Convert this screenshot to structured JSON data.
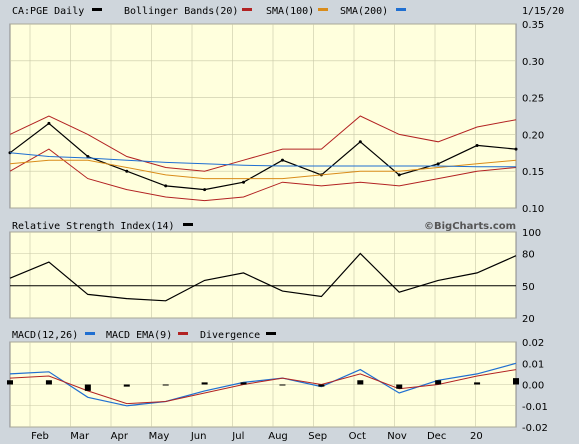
{
  "header": {
    "symbol_label": "CA:PGE Daily",
    "bb_label": "Bollinger Bands(20)",
    "sma100_label": "SMA(100)",
    "sma200_label": "SMA(200)",
    "date": "1/15/20"
  },
  "rsi_panel": {
    "title": "Relative Strength Index(14)"
  },
  "macd_panel": {
    "macd_label": "MACD(12,26)",
    "ema_label": "MACD EMA(9)",
    "div_label": "Divergence"
  },
  "watermark": "©BigCharts.com",
  "colors": {
    "price": "#000000",
    "bollinger": "#b22222",
    "sma100": "#b22222",
    "sma200": "#d98c1a",
    "sma200_alt": "#1f6fd1",
    "macd": "#1f6fd1",
    "macd_ema": "#b22222",
    "plot_bg": "#ffffdd",
    "panel_bg": "#cfd6dc"
  },
  "chart_data": [
    {
      "type": "line",
      "title": "CA:PGE Daily",
      "x_ticks": [
        "Feb",
        "Mar",
        "Apr",
        "May",
        "Jun",
        "Jul",
        "Aug",
        "Sep",
        "Oct",
        "Nov",
        "Dec",
        "20"
      ],
      "y_ticks": [
        "0.35",
        "0.30",
        "0.25",
        "0.20",
        "0.15",
        "0.10"
      ],
      "ylim": [
        0.1,
        0.35
      ],
      "x_index": [
        0,
        4,
        8,
        12,
        16,
        20,
        24,
        28,
        32,
        36,
        40,
        44,
        48,
        52
      ],
      "series": [
        {
          "name": "CA:PGE Daily",
          "values": [
            0.175,
            0.215,
            0.17,
            0.15,
            0.13,
            0.125,
            0.135,
            0.165,
            0.145,
            0.19,
            0.145,
            0.16,
            0.185,
            0.18
          ]
        },
        {
          "name": "Bollinger Bands(20) upper",
          "values": [
            0.2,
            0.225,
            0.2,
            0.17,
            0.155,
            0.15,
            0.165,
            0.18,
            0.18,
            0.225,
            0.2,
            0.19,
            0.21,
            0.22
          ]
        },
        {
          "name": "Bollinger Bands(20) lower",
          "values": [
            0.15,
            0.18,
            0.14,
            0.125,
            0.115,
            0.11,
            0.115,
            0.135,
            0.13,
            0.135,
            0.13,
            0.14,
            0.15,
            0.155
          ]
        },
        {
          "name": "SMA(100)",
          "values": [
            0.16,
            0.165,
            0.165,
            0.155,
            0.145,
            0.14,
            0.14,
            0.14,
            0.145,
            0.15,
            0.15,
            0.155,
            0.16,
            0.165
          ]
        },
        {
          "name": "SMA(200)",
          "values": [
            0.175,
            0.17,
            0.168,
            0.165,
            0.162,
            0.16,
            0.158,
            0.157,
            0.157,
            0.157,
            0.157,
            0.157,
            0.156,
            0.156
          ]
        }
      ]
    },
    {
      "type": "line",
      "title": "Relative Strength Index(14)",
      "y_ticks": [
        "100",
        "80",
        "50",
        "20"
      ],
      "ylim": [
        20,
        100
      ],
      "reference_line": 50,
      "x_index": [
        0,
        4,
        8,
        12,
        16,
        20,
        24,
        28,
        32,
        36,
        40,
        44,
        48,
        52
      ],
      "series": [
        {
          "name": "RSI",
          "values": [
            57,
            72,
            42,
            38,
            36,
            55,
            62,
            45,
            40,
            80,
            44,
            55,
            62,
            78
          ]
        }
      ]
    },
    {
      "type": "line",
      "title": "MACD(12,26)",
      "y_ticks": [
        "0.02",
        "0.01",
        "0.00",
        "-0.01",
        "-0.02"
      ],
      "ylim": [
        -0.02,
        0.02
      ],
      "x_index": [
        0,
        4,
        8,
        12,
        16,
        20,
        24,
        28,
        32,
        36,
        40,
        44,
        48,
        52
      ],
      "series": [
        {
          "name": "MACD(12,26)",
          "values": [
            0.005,
            0.006,
            -0.006,
            -0.01,
            -0.008,
            -0.003,
            0.001,
            0.003,
            -0.001,
            0.007,
            -0.004,
            0.002,
            0.005,
            0.01
          ]
        },
        {
          "name": "MACD EMA(9)",
          "values": [
            0.003,
            0.004,
            -0.003,
            -0.009,
            -0.008,
            -0.004,
            0.0,
            0.003,
            0.0,
            0.005,
            -0.002,
            0.0,
            0.004,
            0.007
          ]
        },
        {
          "name": "Divergence",
          "values": [
            0.002,
            0.002,
            -0.003,
            -0.001,
            0.0,
            0.001,
            0.001,
            0.0,
            -0.001,
            0.002,
            -0.002,
            0.002,
            0.001,
            0.003
          ]
        }
      ]
    }
  ]
}
